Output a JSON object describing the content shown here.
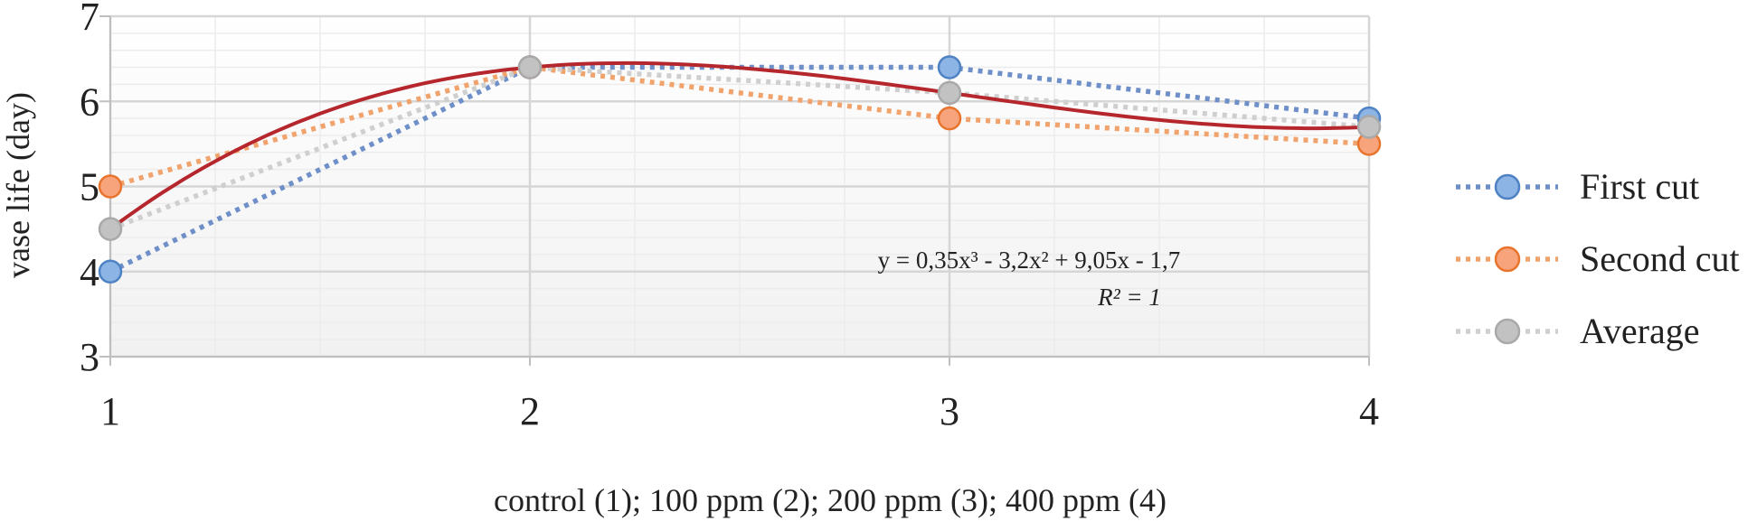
{
  "chart_data": {
    "type": "line",
    "xlabel": "control (1); 100 ppm (2); 200 ppm (3); 400 ppm (4)",
    "ylabel": "vase life (day)",
    "x": [
      1,
      2,
      3,
      4
    ],
    "x_ticks": [
      "1",
      "2",
      "3",
      "4"
    ],
    "y_ticks": [
      "3",
      "4",
      "5",
      "6",
      "7"
    ],
    "xlim": [
      1,
      4
    ],
    "ylim": [
      3,
      7
    ],
    "grid": true,
    "legend_position": "right",
    "series": [
      {
        "name": "First cut",
        "values": [
          4.0,
          6.4,
          6.4,
          5.8
        ],
        "color": "#6f8fc8",
        "marker_fill": "#8cb4e4",
        "marker_stroke": "#4f82c4",
        "style": "dotted"
      },
      {
        "name": "Second cut",
        "values": [
          5.0,
          6.4,
          5.8,
          5.5
        ],
        "color": "#f0a36c",
        "marker_fill": "#f7a37b",
        "marker_stroke": "#e8742e",
        "style": "dotted"
      },
      {
        "name": "Average",
        "values": [
          4.5,
          6.4,
          6.1,
          5.7
        ],
        "color": "#cfcfcf",
        "marker_fill": "#c2c2c2",
        "marker_stroke": "#a9a9a9",
        "style": "dotted"
      }
    ],
    "trendline": {
      "type": "polynomial",
      "coefficients": [
        0.35,
        -3.2,
        9.05,
        -1.7
      ],
      "color": "#b5272d",
      "equation": "y = 0,35x³ - 3,2x² + 9,05x - 1,7",
      "r_squared": "R² = 1"
    }
  }
}
